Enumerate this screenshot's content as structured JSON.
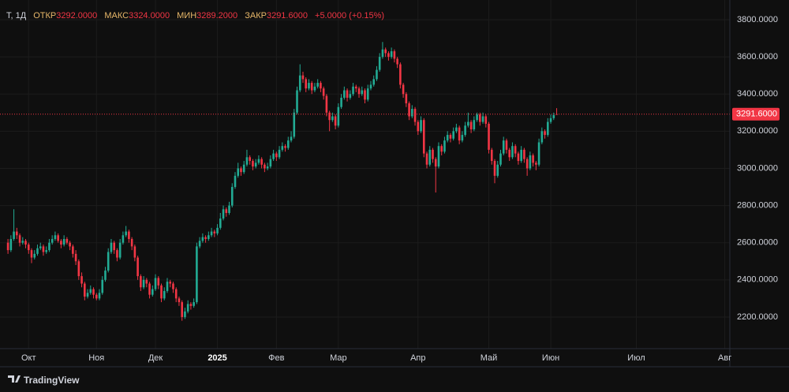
{
  "chart_data": {
    "type": "candlestick",
    "legend": {
      "symbol": "Т, 1Д",
      "open_label": "ОТКР",
      "open": {
        "value": 3292,
        "label": "3292.0000"
      },
      "high_label": "МАКС",
      "high": {
        "value": 3324,
        "label": "3324.0000"
      },
      "low_label": "МИН",
      "low": {
        "value": 3289.2,
        "label": "3289.2000"
      },
      "close_label": "ЗАКР",
      "close": {
        "value": 3291.6,
        "label": "3291.6000"
      },
      "change": {
        "value": 5,
        "label": "+5.0000"
      },
      "change_pct": {
        "value": 0.15,
        "label": "(+0.15%)"
      }
    },
    "up_color": "#22ab94",
    "down_color": "#f23645",
    "grid": true,
    "ylim": [
      2030,
      3906
    ],
    "yticks": [
      {
        "value": 2200,
        "label": "2200.0000"
      },
      {
        "value": 2400,
        "label": "2400.0000"
      },
      {
        "value": 2600,
        "label": "2600.0000"
      },
      {
        "value": 2800,
        "label": "2800.0000"
      },
      {
        "value": 3000,
        "label": "3000.0000"
      },
      {
        "value": 3200,
        "label": "3200.0000"
      },
      {
        "value": 3400,
        "label": "3400.0000"
      },
      {
        "value": 3600,
        "label": "3600.0000"
      },
      {
        "value": 3800,
        "label": "3800.0000"
      }
    ],
    "xlim": [
      -2.7,
      244.7
    ],
    "xticks": [
      {
        "value": 7,
        "label": "Окт"
      },
      {
        "value": 30,
        "label": "Ноя"
      },
      {
        "value": 50,
        "label": "Дек"
      },
      {
        "value": 71,
        "label": "2025"
      },
      {
        "value": 91,
        "label": "Фев"
      },
      {
        "value": 112,
        "label": "Мар"
      },
      {
        "value": 139,
        "label": "Апр"
      },
      {
        "value": 163,
        "label": "Май"
      },
      {
        "value": 184,
        "label": "Июн"
      },
      {
        "value": 213,
        "label": "Июл"
      },
      {
        "value": 243,
        "label": "Авг"
      }
    ],
    "last_price": {
      "value": 3291.6,
      "label": "3291.6000"
    },
    "candles": [
      [
        2600,
        2620,
        2540,
        2560
      ],
      [
        2560,
        2640,
        2550,
        2620
      ],
      [
        2620,
        2780,
        2610,
        2660
      ],
      [
        2660,
        2680,
        2620,
        2640
      ],
      [
        2640,
        2650,
        2580,
        2600
      ],
      [
        2600,
        2630,
        2590,
        2610
      ],
      [
        2610,
        2620,
        2570,
        2590
      ],
      [
        2590,
        2600,
        2540,
        2560
      ],
      [
        2560,
        2570,
        2490,
        2520
      ],
      [
        2520,
        2560,
        2510,
        2540
      ],
      [
        2540,
        2590,
        2530,
        2570
      ],
      [
        2570,
        2600,
        2560,
        2580
      ],
      [
        2580,
        2590,
        2530,
        2550
      ],
      [
        2550,
        2580,
        2540,
        2560
      ],
      [
        2560,
        2620,
        2550,
        2600
      ],
      [
        2600,
        2640,
        2590,
        2620
      ],
      [
        2620,
        2660,
        2610,
        2640
      ],
      [
        2640,
        2650,
        2600,
        2610
      ],
      [
        2610,
        2620,
        2570,
        2590
      ],
      [
        2590,
        2640,
        2580,
        2620
      ],
      [
        2620,
        2630,
        2590,
        2600
      ],
      [
        2600,
        2610,
        2560,
        2580
      ],
      [
        2580,
        2590,
        2520,
        2540
      ],
      [
        2540,
        2560,
        2480,
        2500
      ],
      [
        2500,
        2510,
        2400,
        2420
      ],
      [
        2420,
        2440,
        2360,
        2380
      ],
      [
        2380,
        2390,
        2290,
        2310
      ],
      [
        2310,
        2350,
        2300,
        2330
      ],
      [
        2330,
        2370,
        2320,
        2350
      ],
      [
        2350,
        2360,
        2300,
        2320
      ],
      [
        2320,
        2330,
        2290,
        2300
      ],
      [
        2300,
        2350,
        2290,
        2330
      ],
      [
        2330,
        2420,
        2320,
        2400
      ],
      [
        2400,
        2470,
        2390,
        2450
      ],
      [
        2450,
        2570,
        2440,
        2550
      ],
      [
        2550,
        2620,
        2540,
        2600
      ],
      [
        2600,
        2610,
        2540,
        2560
      ],
      [
        2560,
        2570,
        2500,
        2520
      ],
      [
        2520,
        2620,
        2510,
        2600
      ],
      [
        2600,
        2660,
        2590,
        2640
      ],
      [
        2640,
        2690,
        2630,
        2660
      ],
      [
        2660,
        2670,
        2600,
        2620
      ],
      [
        2620,
        2630,
        2560,
        2580
      ],
      [
        2580,
        2590,
        2500,
        2520
      ],
      [
        2520,
        2530,
        2400,
        2420
      ],
      [
        2420,
        2430,
        2340,
        2360
      ],
      [
        2360,
        2420,
        2350,
        2400
      ],
      [
        2400,
        2410,
        2360,
        2380
      ],
      [
        2380,
        2390,
        2300,
        2320
      ],
      [
        2320,
        2370,
        2310,
        2350
      ],
      [
        2350,
        2430,
        2340,
        2410
      ],
      [
        2410,
        2420,
        2350,
        2370
      ],
      [
        2370,
        2380,
        2280,
        2300
      ],
      [
        2300,
        2360,
        2290,
        2340
      ],
      [
        2340,
        2410,
        2330,
        2390
      ],
      [
        2390,
        2400,
        2360,
        2380
      ],
      [
        2380,
        2390,
        2330,
        2350
      ],
      [
        2350,
        2360,
        2280,
        2300
      ],
      [
        2300,
        2310,
        2260,
        2280
      ],
      [
        2280,
        2290,
        2180,
        2200
      ],
      [
        2200,
        2250,
        2190,
        2230
      ],
      [
        2230,
        2290,
        2220,
        2270
      ],
      [
        2270,
        2280,
        2240,
        2260
      ],
      [
        2260,
        2300,
        2250,
        2280
      ],
      [
        2280,
        2600,
        2270,
        2580
      ],
      [
        2580,
        2630,
        2570,
        2610
      ],
      [
        2610,
        2650,
        2600,
        2630
      ],
      [
        2630,
        2640,
        2600,
        2620
      ],
      [
        2620,
        2660,
        2610,
        2640
      ],
      [
        2640,
        2680,
        2630,
        2660
      ],
      [
        2660,
        2670,
        2630,
        2650
      ],
      [
        2650,
        2700,
        2640,
        2680
      ],
      [
        2680,
        2760,
        2670,
        2730
      ],
      [
        2730,
        2800,
        2720,
        2780
      ],
      [
        2780,
        2790,
        2740,
        2760
      ],
      [
        2760,
        2820,
        2750,
        2800
      ],
      [
        2800,
        2920,
        2790,
        2900
      ],
      [
        2900,
        2980,
        2890,
        2960
      ],
      [
        2960,
        3030,
        2950,
        3000
      ],
      [
        3000,
        3010,
        2960,
        2980
      ],
      [
        2980,
        3040,
        2970,
        3020
      ],
      [
        3020,
        3100,
        3010,
        3060
      ],
      [
        3060,
        3070,
        3020,
        3040
      ],
      [
        3040,
        3050,
        2990,
        3010
      ],
      [
        3010,
        3050,
        3000,
        3030
      ],
      [
        3030,
        3070,
        3020,
        3050
      ],
      [
        3050,
        3060,
        3000,
        3020
      ],
      [
        3020,
        3030,
        2980,
        3000
      ],
      [
        3000,
        3030,
        2990,
        3010
      ],
      [
        3010,
        3070,
        3000,
        3050
      ],
      [
        3050,
        3100,
        3040,
        3080
      ],
      [
        3080,
        3090,
        3040,
        3060
      ],
      [
        3060,
        3120,
        3050,
        3100
      ],
      [
        3100,
        3140,
        3090,
        3120
      ],
      [
        3120,
        3130,
        3090,
        3110
      ],
      [
        3110,
        3170,
        3100,
        3150
      ],
      [
        3150,
        3200,
        3140,
        3170
      ],
      [
        3170,
        3320,
        3160,
        3300
      ],
      [
        3300,
        3440,
        3290,
        3420
      ],
      [
        3420,
        3560,
        3410,
        3500
      ],
      [
        3500,
        3520,
        3460,
        3480
      ],
      [
        3480,
        3490,
        3410,
        3430
      ],
      [
        3430,
        3480,
        3420,
        3460
      ],
      [
        3460,
        3470,
        3400,
        3420
      ],
      [
        3420,
        3460,
        3410,
        3440
      ],
      [
        3440,
        3480,
        3430,
        3460
      ],
      [
        3460,
        3470,
        3410,
        3430
      ],
      [
        3430,
        3440,
        3370,
        3390
      ],
      [
        3390,
        3400,
        3280,
        3300
      ],
      [
        3300,
        3310,
        3200,
        3260
      ],
      [
        3260,
        3300,
        3250,
        3280
      ],
      [
        3280,
        3290,
        3210,
        3230
      ],
      [
        3230,
        3350,
        3220,
        3330
      ],
      [
        3330,
        3400,
        3320,
        3380
      ],
      [
        3380,
        3440,
        3370,
        3420
      ],
      [
        3420,
        3430,
        3360,
        3380
      ],
      [
        3380,
        3420,
        3370,
        3400
      ],
      [
        3400,
        3460,
        3390,
        3440
      ],
      [
        3440,
        3450,
        3410,
        3430
      ],
      [
        3430,
        3440,
        3380,
        3400
      ],
      [
        3400,
        3440,
        3390,
        3420
      ],
      [
        3420,
        3430,
        3350,
        3370
      ],
      [
        3370,
        3450,
        3360,
        3430
      ],
      [
        3430,
        3470,
        3420,
        3450
      ],
      [
        3450,
        3500,
        3440,
        3480
      ],
      [
        3480,
        3550,
        3470,
        3530
      ],
      [
        3530,
        3620,
        3520,
        3600
      ],
      [
        3600,
        3680,
        3590,
        3640
      ],
      [
        3640,
        3650,
        3600,
        3620
      ],
      [
        3620,
        3630,
        3580,
        3600
      ],
      [
        3600,
        3650,
        3590,
        3630
      ],
      [
        3630,
        3640,
        3570,
        3590
      ],
      [
        3590,
        3600,
        3540,
        3560
      ],
      [
        3560,
        3570,
        3430,
        3450
      ],
      [
        3450,
        3460,
        3380,
        3400
      ],
      [
        3400,
        3410,
        3330,
        3350
      ],
      [
        3350,
        3360,
        3260,
        3280
      ],
      [
        3280,
        3340,
        3270,
        3320
      ],
      [
        3320,
        3330,
        3230,
        3250
      ],
      [
        3250,
        3260,
        3180,
        3200
      ],
      [
        3200,
        3280,
        3190,
        3260
      ],
      [
        3260,
        3270,
        3060,
        3080
      ],
      [
        3080,
        3090,
        3000,
        3020
      ],
      [
        3020,
        3120,
        3010,
        3100
      ],
      [
        3100,
        3110,
        3030,
        3050
      ],
      [
        3050,
        3060,
        2870,
        3010
      ],
      [
        3010,
        3140,
        3000,
        3120
      ],
      [
        3120,
        3130,
        3070,
        3090
      ],
      [
        3090,
        3170,
        3080,
        3150
      ],
      [
        3150,
        3200,
        3140,
        3180
      ],
      [
        3180,
        3190,
        3140,
        3160
      ],
      [
        3160,
        3220,
        3150,
        3200
      ],
      [
        3200,
        3240,
        3190,
        3220
      ],
      [
        3220,
        3230,
        3130,
        3150
      ],
      [
        3150,
        3200,
        3140,
        3180
      ],
      [
        3180,
        3250,
        3170,
        3230
      ],
      [
        3230,
        3300,
        3220,
        3250
      ],
      [
        3250,
        3260,
        3190,
        3210
      ],
      [
        3210,
        3280,
        3200,
        3260
      ],
      [
        3260,
        3300,
        3250,
        3290
      ],
      [
        3290,
        3300,
        3230,
        3250
      ],
      [
        3250,
        3300,
        3240,
        3280
      ],
      [
        3280,
        3290,
        3220,
        3240
      ],
      [
        3240,
        3250,
        3080,
        3100
      ],
      [
        3100,
        3110,
        3020,
        3040
      ],
      [
        3040,
        3050,
        2920,
        2960
      ],
      [
        2960,
        3040,
        2950,
        3020
      ],
      [
        3020,
        3100,
        3010,
        3080
      ],
      [
        3080,
        3170,
        3070,
        3150
      ],
      [
        3150,
        3160,
        3080,
        3100
      ],
      [
        3100,
        3110,
        3040,
        3060
      ],
      [
        3060,
        3140,
        3050,
        3120
      ],
      [
        3120,
        3130,
        3060,
        3080
      ],
      [
        3080,
        3090,
        3020,
        3040
      ],
      [
        3040,
        3120,
        3030,
        3100
      ],
      [
        3100,
        3110,
        3030,
        3050
      ],
      [
        3050,
        3060,
        2960,
        3000
      ],
      [
        3000,
        3090,
        2990,
        3070
      ],
      [
        3070,
        3080,
        3010,
        3030
      ],
      [
        3030,
        3040,
        2990,
        3020
      ],
      [
        3020,
        3160,
        3010,
        3140
      ],
      [
        3140,
        3220,
        3130,
        3200
      ],
      [
        3200,
        3210,
        3160,
        3180
      ],
      [
        3180,
        3270,
        3170,
        3250
      ],
      [
        3250,
        3290,
        3240,
        3270
      ],
      [
        3270,
        3300,
        3260,
        3286.6
      ],
      [
        3292,
        3324,
        3289.2,
        3291.6
      ]
    ]
  },
  "footer": {
    "brand": "TradingView"
  }
}
